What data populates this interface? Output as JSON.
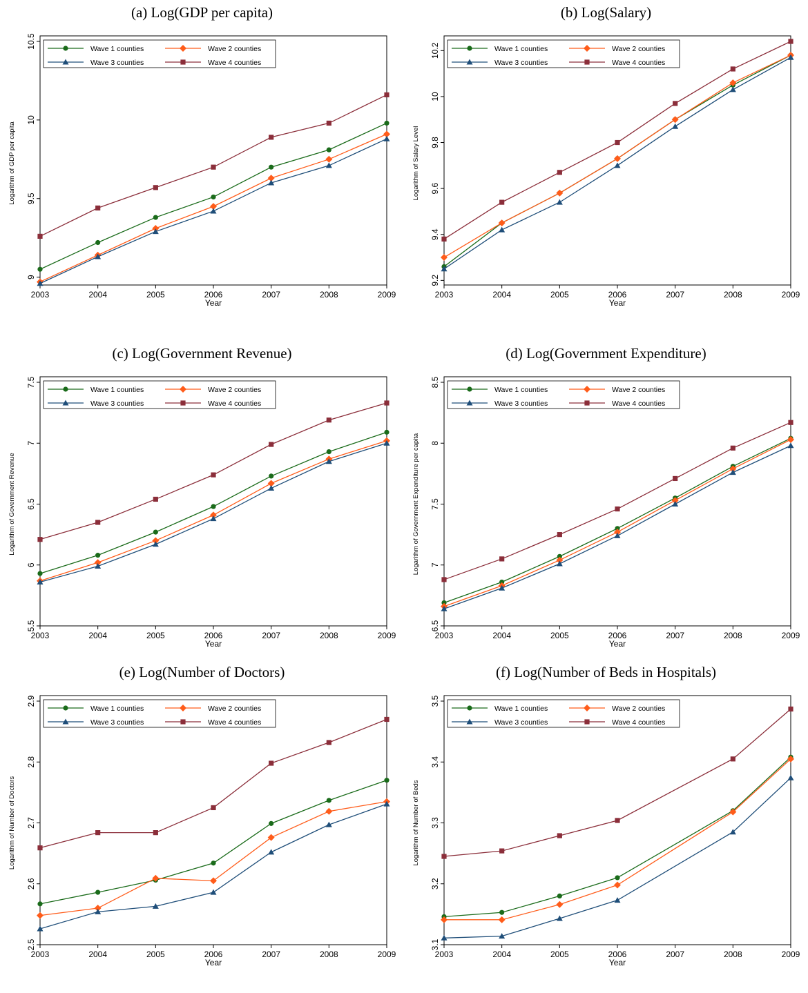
{
  "chart_data": [
    {
      "type": "line",
      "title": "(a) Log(GDP per capita)",
      "xlabel": "Year",
      "ylabel": "Logarithm of GDP per capita",
      "x": [
        2003,
        2004,
        2005,
        2006,
        2007,
        2008,
        2009
      ],
      "ylim": [
        8.95,
        10.5
      ],
      "yticks": [
        "9",
        "9.5",
        "10",
        "10.5"
      ],
      "yticks_values": [
        9,
        9.5,
        10,
        10.5
      ],
      "legend_position": "top-left",
      "series": [
        {
          "name": "Wave 1 counties",
          "color": "#1a6b1a",
          "marker": "circle",
          "values": [
            9.05,
            9.22,
            9.38,
            9.51,
            9.7,
            9.81,
            9.98
          ]
        },
        {
          "name": "Wave 2 counties",
          "color": "#ff5c1a",
          "marker": "diamond",
          "values": [
            8.97,
            9.14,
            9.31,
            9.45,
            9.63,
            9.75,
            9.91
          ]
        },
        {
          "name": "Wave 3 counties",
          "color": "#1f4e79",
          "marker": "triangle",
          "values": [
            8.96,
            9.13,
            9.29,
            9.42,
            9.6,
            9.71,
            9.88
          ]
        },
        {
          "name": "Wave 4 counties",
          "color": "#8b2e3a",
          "marker": "square",
          "values": [
            9.26,
            9.44,
            9.57,
            9.7,
            9.89,
            9.98,
            10.16
          ]
        }
      ]
    },
    {
      "type": "line",
      "title": "(b) Log(Salary)",
      "xlabel": "Year",
      "ylabel": "Logarithm of Salary Level",
      "x": [
        2003,
        2004,
        2005,
        2006,
        2007,
        2008,
        2009
      ],
      "ylim": [
        9.18,
        10.24
      ],
      "yticks": [
        "9.2",
        "9.4",
        "9.6",
        "9.8",
        "10",
        "10.2"
      ],
      "yticks_values": [
        9.2,
        9.4,
        9.6,
        9.8,
        10,
        10.2
      ],
      "legend_position": "top-left",
      "series": [
        {
          "name": "Wave 1 counties",
          "color": "#1a6b1a",
          "marker": "circle",
          "values": [
            9.26,
            9.45,
            9.58,
            9.73,
            9.9,
            10.05,
            10.18
          ]
        },
        {
          "name": "Wave 2 counties",
          "color": "#ff5c1a",
          "marker": "diamond",
          "values": [
            9.3,
            9.45,
            9.58,
            9.73,
            9.9,
            10.06,
            10.18
          ]
        },
        {
          "name": "Wave 3 counties",
          "color": "#1f4e79",
          "marker": "triangle",
          "values": [
            9.25,
            9.42,
            9.54,
            9.7,
            9.87,
            10.03,
            10.17
          ]
        },
        {
          "name": "Wave 4 counties",
          "color": "#8b2e3a",
          "marker": "square",
          "values": [
            9.38,
            9.54,
            9.67,
            9.8,
            9.97,
            10.12,
            10.24
          ]
        }
      ]
    },
    {
      "type": "line",
      "title": "(c) Log(Government Revenue)",
      "xlabel": "Year",
      "ylabel": "Logarithm of Government Revenue",
      "x": [
        2003,
        2004,
        2005,
        2006,
        2007,
        2008,
        2009
      ],
      "ylim": [
        5.5,
        7.5
      ],
      "yticks": [
        "5.5",
        "6",
        "6.5",
        "7",
        "7.5"
      ],
      "yticks_values": [
        5.5,
        6,
        6.5,
        7,
        7.5
      ],
      "legend_position": "top-left",
      "series": [
        {
          "name": "Wave 1 counties",
          "color": "#1a6b1a",
          "marker": "circle",
          "values": [
            5.93,
            6.08,
            6.27,
            6.48,
            6.73,
            6.93,
            7.09
          ]
        },
        {
          "name": "Wave 2 counties",
          "color": "#ff5c1a",
          "marker": "diamond",
          "values": [
            5.87,
            6.02,
            6.2,
            6.41,
            6.67,
            6.87,
            7.02
          ]
        },
        {
          "name": "Wave 3 counties",
          "color": "#1f4e79",
          "marker": "triangle",
          "values": [
            5.86,
            5.99,
            6.17,
            6.38,
            6.63,
            6.85,
            7.0
          ]
        },
        {
          "name": "Wave 4 counties",
          "color": "#8b2e3a",
          "marker": "square",
          "values": [
            6.21,
            6.35,
            6.54,
            6.74,
            6.99,
            7.19,
            7.33
          ]
        }
      ]
    },
    {
      "type": "line",
      "title": "(d) Log(Government Expenditure)",
      "xlabel": "Year",
      "ylabel": "Logarithm of Government Expenditure per capita",
      "x": [
        2003,
        2004,
        2005,
        2006,
        2007,
        2008,
        2009
      ],
      "ylim": [
        6.5,
        8.5
      ],
      "yticks": [
        "6.5",
        "7",
        "7.5",
        "8",
        "8.5"
      ],
      "yticks_values": [
        6.5,
        7,
        7.5,
        8,
        8.5
      ],
      "legend_position": "top-left",
      "series": [
        {
          "name": "Wave 1 counties",
          "color": "#1a6b1a",
          "marker": "circle",
          "values": [
            6.69,
            6.86,
            7.07,
            7.3,
            7.55,
            7.81,
            8.04
          ]
        },
        {
          "name": "Wave 2 counties",
          "color": "#ff5c1a",
          "marker": "diamond",
          "values": [
            6.66,
            6.83,
            7.04,
            7.27,
            7.53,
            7.79,
            8.03
          ]
        },
        {
          "name": "Wave 3 counties",
          "color": "#1f4e79",
          "marker": "triangle",
          "values": [
            6.64,
            6.81,
            7.01,
            7.24,
            7.5,
            7.76,
            7.98
          ]
        },
        {
          "name": "Wave 4 counties",
          "color": "#8b2e3a",
          "marker": "square",
          "values": [
            6.88,
            7.05,
            7.25,
            7.46,
            7.71,
            7.96,
            8.17
          ]
        }
      ]
    },
    {
      "type": "line",
      "title": "(e) Log(Number of Doctors)",
      "xlabel": "Year",
      "ylabel": "Logarithm of Number of Doctors",
      "x": [
        2003,
        2004,
        2005,
        2006,
        2007,
        2008,
        2009
      ],
      "ylim": [
        2.5,
        2.9
      ],
      "yticks": [
        "2.5",
        "2.6",
        "2.7",
        "2.8",
        "2.9"
      ],
      "yticks_values": [
        2.5,
        2.6,
        2.7,
        2.8,
        2.9
      ],
      "legend_position": "top-left",
      "series": [
        {
          "name": "Wave 1 counties",
          "color": "#1a6b1a",
          "marker": "circle",
          "values": [
            2.567,
            2.586,
            2.606,
            2.634,
            2.699,
            2.737,
            2.77
          ]
        },
        {
          "name": "Wave 2 counties",
          "color": "#ff5c1a",
          "marker": "diamond",
          "values": [
            2.548,
            2.56,
            2.609,
            2.605,
            2.676,
            2.719,
            2.735
          ]
        },
        {
          "name": "Wave 3 counties",
          "color": "#1f4e79",
          "marker": "triangle",
          "values": [
            2.526,
            2.554,
            2.563,
            2.586,
            2.652,
            2.697,
            2.731
          ]
        },
        {
          "name": "Wave 4 counties",
          "color": "#8b2e3a",
          "marker": "square",
          "values": [
            2.659,
            2.684,
            2.684,
            2.725,
            2.798,
            2.832,
            2.87
          ]
        }
      ]
    },
    {
      "type": "line",
      "title": "(f) Log(Number of Beds in Hospitals)",
      "xlabel": "Year",
      "ylabel": "Logarithm of Number of Beds",
      "x": [
        2003,
        2004,
        2005,
        2006,
        2007,
        2008,
        2009
      ],
      "ylim": [
        3.1,
        3.5
      ],
      "yticks": [
        "3.1",
        "3.2",
        "3.3",
        "3.4",
        "3.5"
      ],
      "yticks_values": [
        3.1,
        3.2,
        3.3,
        3.4,
        3.5
      ],
      "legend_position": "top-left",
      "series": [
        {
          "name": "Wave 1 counties",
          "color": "#1a6b1a",
          "marker": "circle",
          "values": [
            3.146,
            3.153,
            3.18,
            3.21,
            null,
            3.32,
            3.408
          ]
        },
        {
          "name": "Wave 2 counties",
          "color": "#ff5c1a",
          "marker": "diamond",
          "values": [
            3.141,
            3.141,
            3.166,
            3.198,
            null,
            3.318,
            3.405
          ]
        },
        {
          "name": "Wave 3 counties",
          "color": "#1f4e79",
          "marker": "triangle",
          "values": [
            3.111,
            3.114,
            3.143,
            3.173,
            null,
            3.285,
            3.374
          ]
        },
        {
          "name": "Wave 4 counties",
          "color": "#8b2e3a",
          "marker": "square",
          "values": [
            3.245,
            3.254,
            3.279,
            3.304,
            null,
            3.405,
            3.487
          ]
        }
      ]
    }
  ]
}
